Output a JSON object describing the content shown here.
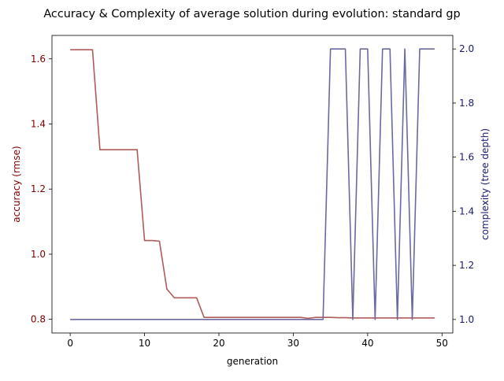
{
  "chart_data": {
    "type": "line",
    "title": "Accuracy & Complexity of average solution during evolution: standard gp",
    "xlabel": "generation",
    "ylabel_left": "accuracy (rmse)",
    "ylabel_right": "complexity (tree depth)",
    "xlim": [
      -2.45,
      51.45
    ],
    "ylim_left": [
      0.758,
      1.672
    ],
    "ylim_right": [
      0.95,
      2.05
    ],
    "x_ticks": [
      0,
      10,
      20,
      30,
      40,
      50
    ],
    "x_tick_labels": [
      "0",
      "10",
      "20",
      "30",
      "40",
      "50"
    ],
    "y_left_ticks": [
      0.8,
      1.0,
      1.2,
      1.4,
      1.6
    ],
    "y_left_tick_labels": [
      "0.8",
      "1.0",
      "1.2",
      "1.4",
      "1.6"
    ],
    "y_right_ticks": [
      1.0,
      1.2,
      1.4,
      1.6,
      1.8,
      2.0
    ],
    "y_right_tick_labels": [
      "1.0",
      "1.2",
      "1.4",
      "1.6",
      "1.8",
      "2.0"
    ],
    "left_color": "#800000",
    "right_color": "#191970",
    "grid": false,
    "x": [
      0,
      1,
      2,
      3,
      4,
      5,
      6,
      7,
      8,
      9,
      10,
      11,
      12,
      13,
      14,
      15,
      16,
      17,
      18,
      19,
      20,
      21,
      22,
      23,
      24,
      25,
      26,
      27,
      28,
      29,
      30,
      31,
      32,
      33,
      34,
      35,
      36,
      37,
      38,
      39,
      40,
      41,
      42,
      43,
      44,
      45,
      46,
      47,
      48,
      49
    ],
    "series": [
      {
        "axis": "left",
        "color": "#b05a5a",
        "values": [
          1.628,
          1.628,
          1.628,
          1.628,
          1.321,
          1.321,
          1.321,
          1.321,
          1.321,
          1.321,
          1.042,
          1.042,
          1.04,
          0.893,
          0.866,
          0.866,
          0.866,
          0.866,
          0.806,
          0.806,
          0.806,
          0.806,
          0.806,
          0.806,
          0.806,
          0.806,
          0.806,
          0.806,
          0.806,
          0.806,
          0.806,
          0.806,
          0.803,
          0.806,
          0.806,
          0.806,
          0.805,
          0.805,
          0.804,
          0.804,
          0.804,
          0.804,
          0.804,
          0.804,
          0.804,
          0.804,
          0.804,
          0.804,
          0.804,
          0.804
        ]
      },
      {
        "axis": "right",
        "color": "#6a6aa0",
        "values": [
          1,
          1,
          1,
          1,
          1,
          1,
          1,
          1,
          1,
          1,
          1,
          1,
          1,
          1,
          1,
          1,
          1,
          1,
          1,
          1,
          1,
          1,
          1,
          1,
          1,
          1,
          1,
          1,
          1,
          1,
          1,
          1,
          1,
          1,
          1,
          2,
          2,
          2,
          1,
          2,
          2,
          1,
          2,
          2,
          1,
          2,
          1,
          2,
          2,
          2
        ]
      }
    ]
  }
}
